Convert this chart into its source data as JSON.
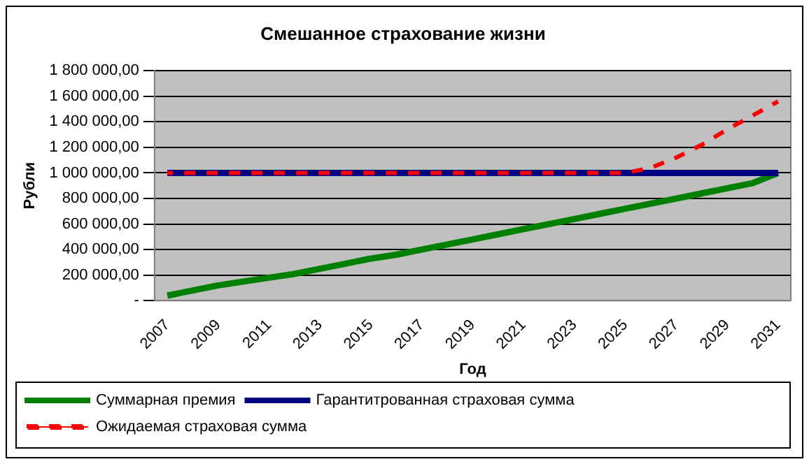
{
  "chart_data": {
    "type": "line",
    "title": "Смешанное страхование жизни",
    "xlabel": "Год",
    "ylabel": "Рубли",
    "categories": [
      "2007",
      null,
      "2009",
      null,
      "2011",
      null,
      "2013",
      null,
      "2015",
      null,
      "2017",
      null,
      "2019",
      null,
      "2021",
      null,
      "2023",
      null,
      "2025",
      null,
      "2027",
      null,
      "2029",
      null,
      "2031"
    ],
    "series": [
      {
        "name": "Суммарная премия",
        "color": "#008000",
        "line_style": "solid",
        "values": [
          40000,
          80000,
          120000,
          150000,
          180000,
          210000,
          250000,
          290000,
          330000,
          360000,
          400000,
          440000,
          480000,
          520000,
          560000,
          600000,
          640000,
          680000,
          720000,
          760000,
          800000,
          840000,
          880000,
          920000,
          1000000
        ]
      },
      {
        "name": "Гарантитрованная страховая сумма",
        "color": "#000080",
        "line_style": "solid",
        "values": [
          1000000,
          1000000,
          1000000,
          1000000,
          1000000,
          1000000,
          1000000,
          1000000,
          1000000,
          1000000,
          1000000,
          1000000,
          1000000,
          1000000,
          1000000,
          1000000,
          1000000,
          1000000,
          1000000,
          1000000,
          1000000,
          1000000,
          1000000,
          1000000,
          1000000
        ]
      },
      {
        "name": "Ожидаемая страховая сумма",
        "color": "#ff0000",
        "line_style": "dashed",
        "values": [
          1000000,
          1000000,
          1000000,
          1000000,
          1000000,
          1000000,
          1000000,
          1000000,
          1000000,
          1000000,
          1000000,
          1000000,
          1000000,
          1000000,
          1000000,
          1000000,
          1000000,
          1000000,
          1000000,
          1040000,
          1120000,
          1220000,
          1340000,
          1450000,
          1560000
        ]
      }
    ],
    "ylim": [
      0,
      1800000
    ],
    "yticks": [
      {
        "value": 0,
        "label": "-"
      },
      {
        "value": 200000,
        "label": "200 000,00"
      },
      {
        "value": 400000,
        "label": "400 000,00"
      },
      {
        "value": 600000,
        "label": "600 000,00"
      },
      {
        "value": 800000,
        "label": "800 000,00"
      },
      {
        "value": 1000000,
        "label": "1 000 000,00"
      },
      {
        "value": 1200000,
        "label": "1 200 000,00"
      },
      {
        "value": 1400000,
        "label": "1 400 000,00"
      },
      {
        "value": 1600000,
        "label": "1 600 000,00"
      },
      {
        "value": 1800000,
        "label": "1 800 000,00"
      }
    ],
    "grid": "y",
    "legend": "bottom",
    "marker": "none"
  }
}
